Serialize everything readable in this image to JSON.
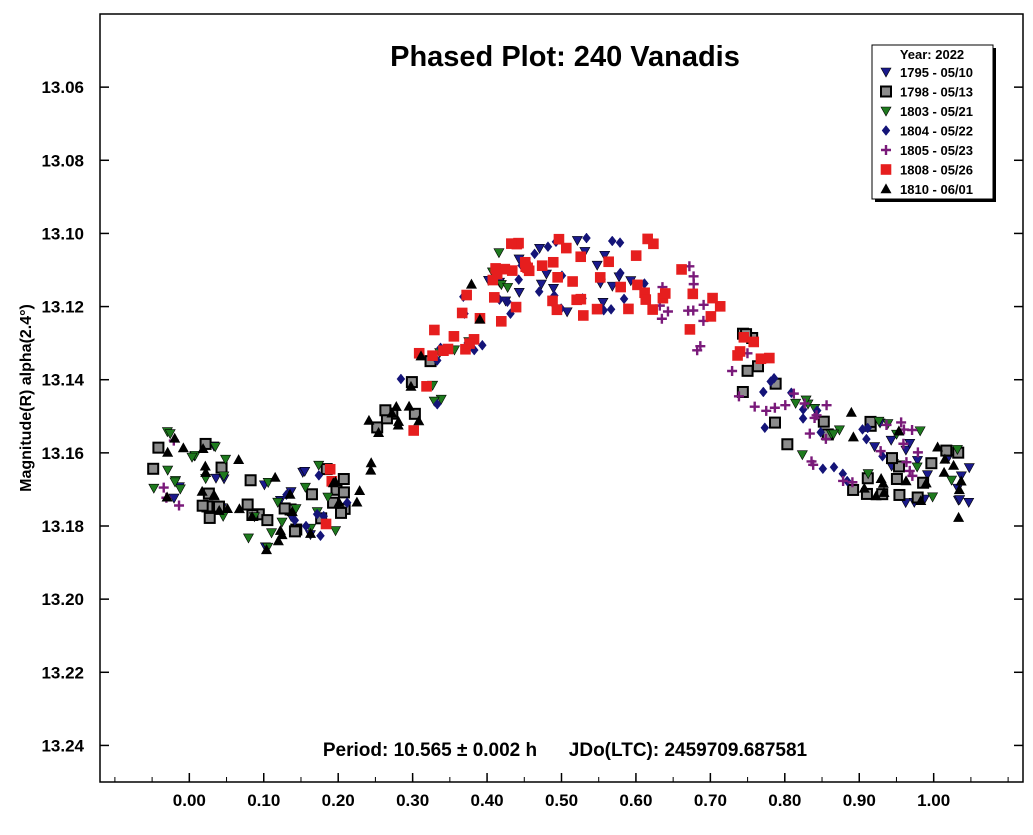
{
  "chart_data": {
    "type": "scatter",
    "title": "Phased Plot: 240 Vanadis",
    "ylabel": "Magnitude(R) alpha(2.4°)",
    "xlabel": "",
    "footer": "Period: 10.565 ± 0.002 h      JDo(LTC): 2459709.687581",
    "xlim": [
      -0.12,
      1.12
    ],
    "ylim": [
      13.25,
      13.04
    ],
    "y_inverted": true,
    "x_ticks": [
      0.0,
      0.1,
      0.2,
      0.3,
      0.4,
      0.5,
      0.6,
      0.7,
      0.8,
      0.9,
      1.0
    ],
    "x_tick_labels": [
      "0.00",
      "0.10",
      "0.20",
      "0.30",
      "0.40",
      "0.50",
      "0.60",
      "0.70",
      "0.80",
      "0.90",
      "1.00"
    ],
    "y_ticks": [
      13.06,
      13.08,
      13.1,
      13.12,
      13.14,
      13.16,
      13.18,
      13.2,
      13.22,
      13.24
    ],
    "y_tick_labels": [
      "13.06",
      "13.08",
      "13.10",
      "13.12",
      "13.14",
      "13.16",
      "13.18",
      "13.20",
      "13.22",
      "13.24"
    ],
    "grid": false,
    "legend": {
      "title": "Year: 2022",
      "position": "top-right"
    },
    "series": [
      {
        "name": "1795 - 05/10",
        "marker": "triangle-down",
        "color": "#1a1a8c"
      },
      {
        "name": "1798 - 05/13",
        "marker": "square",
        "color": "#8c8c8c"
      },
      {
        "name": "1803 - 05/21",
        "marker": "triangle-down",
        "color": "#1e7a1e"
      },
      {
        "name": "1804 - 05/22",
        "marker": "diamond",
        "color": "#141478"
      },
      {
        "name": "1805 - 05/23",
        "marker": "plus",
        "color": "#7a1a7a"
      },
      {
        "name": "1808 - 05/26",
        "marker": "square",
        "color": "#e61e1e"
      },
      {
        "name": "1810 - 06/01",
        "marker": "triangle-up",
        "color": "#000000"
      }
    ]
  }
}
